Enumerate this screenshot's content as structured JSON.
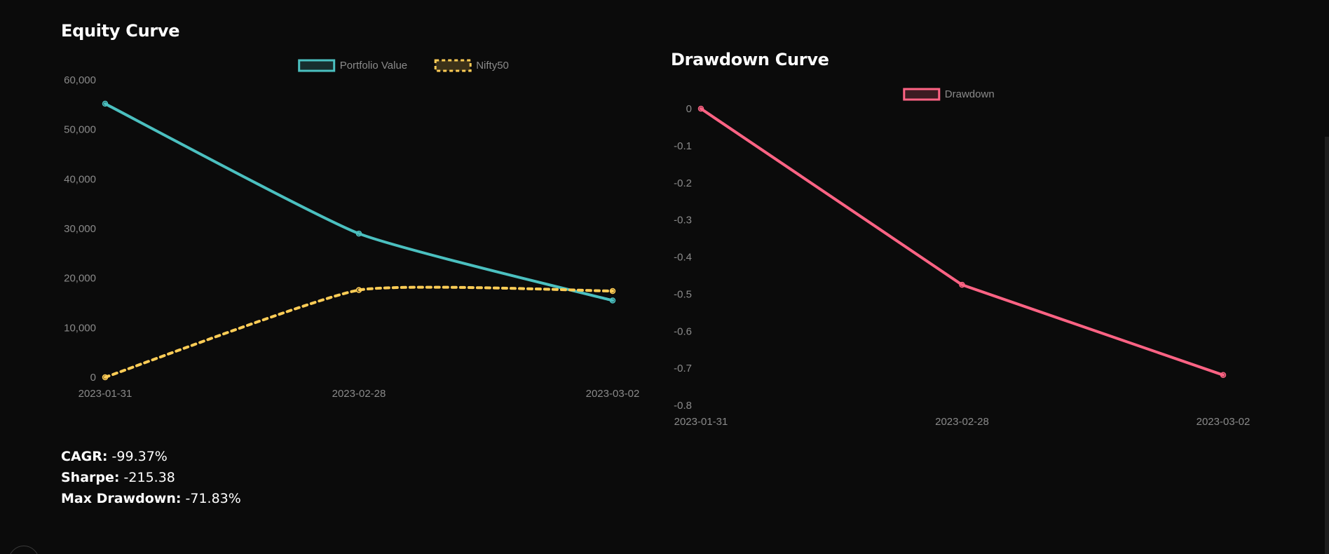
{
  "equity": {
    "title": "Equity Curve"
  },
  "drawdown": {
    "title": "Drawdown Curve"
  },
  "metrics": {
    "cagr_label": "CAGR:",
    "cagr_value": "-99.37%",
    "sharpe_label": "Sharpe:",
    "sharpe_value": "-215.38",
    "maxdd_label": "Max Drawdown:",
    "maxdd_value": "-71.83%"
  },
  "chart_data": [
    {
      "type": "line",
      "title": "Equity Curve",
      "categories": [
        "2023-01-31",
        "2023-02-28",
        "2023-03-02"
      ],
      "ylim": [
        0,
        60000
      ],
      "yticks": [
        "60,000",
        "50,000",
        "40,000",
        "30,000",
        "20,000",
        "10,000",
        "0"
      ],
      "grid": false,
      "legend_position": "top-center",
      "series": [
        {
          "name": "Portfolio Value",
          "values": [
            55200,
            29000,
            15500
          ],
          "color": "#4bc0c0",
          "dashed": false
        },
        {
          "name": "Nifty50",
          "values": [
            0,
            17600,
            17400
          ],
          "color": "#ffcd56",
          "dashed": true
        }
      ]
    },
    {
      "type": "line",
      "title": "Drawdown Curve",
      "categories": [
        "2023-01-31",
        "2023-02-28",
        "2023-03-02"
      ],
      "ylim": [
        -0.8,
        0
      ],
      "yticks": [
        "0",
        "-0.1",
        "-0.2",
        "-0.3",
        "-0.4",
        "-0.5",
        "-0.6",
        "-0.7",
        "-0.8"
      ],
      "grid": false,
      "legend_position": "top-center",
      "series": [
        {
          "name": "Drawdown",
          "values": [
            0,
            -0.475,
            -0.7183
          ],
          "color": "#ff6384",
          "dashed": false
        }
      ]
    }
  ]
}
